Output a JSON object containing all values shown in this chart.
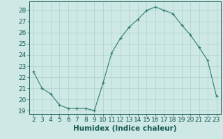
{
  "x": [
    2,
    3,
    4,
    5,
    6,
    7,
    8,
    9,
    10,
    11,
    12,
    13,
    14,
    15,
    16,
    17,
    18,
    19,
    20,
    21,
    22,
    23
  ],
  "y": [
    22.5,
    21.0,
    20.5,
    19.5,
    19.2,
    19.2,
    19.2,
    19.0,
    21.5,
    24.2,
    25.5,
    26.5,
    27.2,
    28.0,
    28.3,
    28.0,
    27.7,
    26.7,
    25.8,
    24.7,
    23.5,
    20.3
  ],
  "xlim": [
    1.5,
    23.5
  ],
  "ylim": [
    18.7,
    28.8
  ],
  "yticks": [
    19,
    20,
    21,
    22,
    23,
    24,
    25,
    26,
    27,
    28
  ],
  "xticks": [
    2,
    3,
    4,
    5,
    6,
    7,
    8,
    9,
    10,
    11,
    12,
    13,
    14,
    15,
    16,
    17,
    18,
    19,
    20,
    21,
    22,
    23
  ],
  "xlabel": "Humidex (Indice chaleur)",
  "line_color": "#2e7d6e",
  "marker": "+",
  "bg_color": "#cde8e5",
  "grid_color": "#b0d0cd",
  "tick_label_color": "#1a5c54",
  "font_size": 6.5,
  "xlabel_fontsize": 7.5
}
